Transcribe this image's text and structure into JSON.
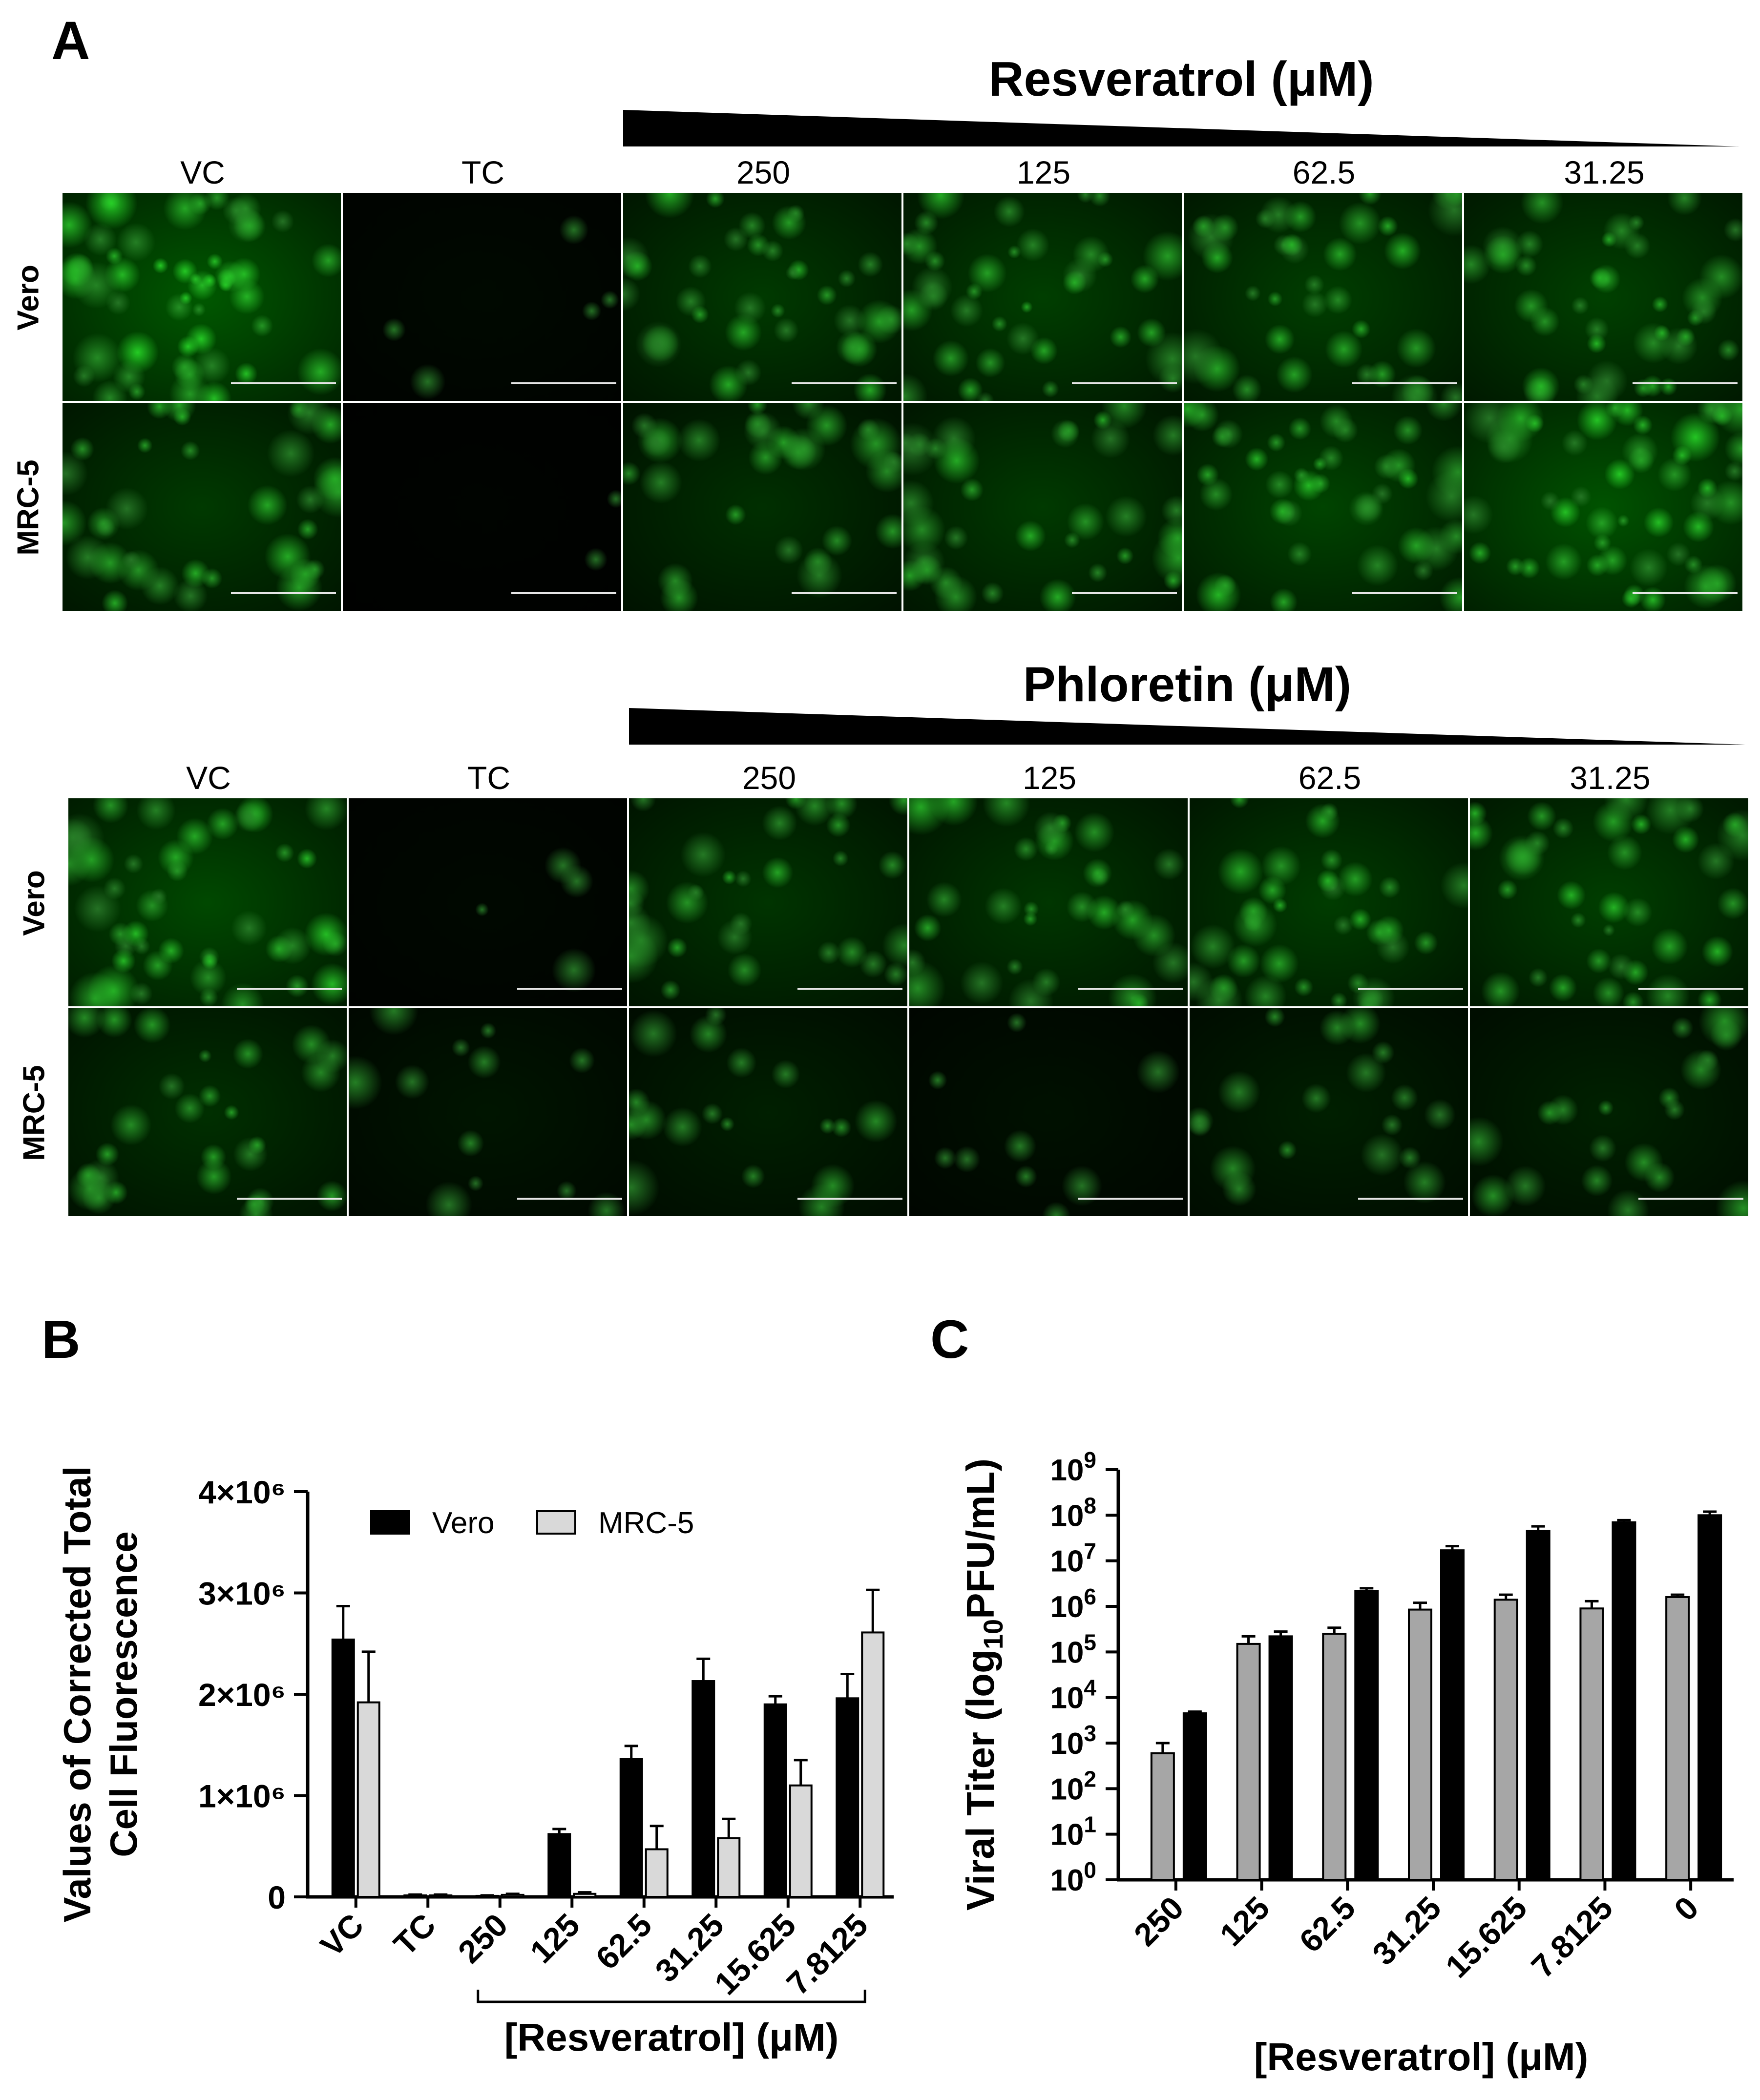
{
  "panel_a": {
    "letter": "A",
    "groups": [
      {
        "drug_title": "Resveratrol (μM)",
        "columns": [
          "VC",
          "TC",
          "250",
          "125",
          "62.5",
          "31.25"
        ],
        "rows": [
          "Vero",
          "MRC-5"
        ],
        "brightness": [
          [
            0.85,
            0.08,
            0.55,
            0.6,
            0.6,
            0.62
          ],
          [
            0.55,
            0.03,
            0.45,
            0.55,
            0.65,
            0.8
          ]
        ]
      },
      {
        "drug_title": "Phloretin (μM)",
        "columns": [
          "VC",
          "TC",
          "250",
          "125",
          "62.5",
          "31.25"
        ],
        "rows": [
          "Vero",
          "MRC-5"
        ],
        "brightness": [
          [
            0.7,
            0.07,
            0.5,
            0.52,
            0.58,
            0.6
          ],
          [
            0.45,
            0.2,
            0.3,
            0.15,
            0.3,
            0.32
          ]
        ]
      }
    ]
  },
  "chart_data": [
    {
      "panel": "B",
      "type": "bar",
      "ylabel_line1": "Values of Corrected Total",
      "ylabel_line2": "Cell Fluorescence",
      "xlabel": "[Resveratrol] (μM)",
      "categories": [
        "VC",
        "TC",
        "250",
        "125",
        "62.5",
        "31.25",
        "15.625",
        "7.8125"
      ],
      "yticks": [
        {
          "value": 0,
          "label": "0"
        },
        {
          "value": 1000000,
          "label": "1×10⁶"
        },
        {
          "value": 2000000,
          "label": "2×10⁶"
        },
        {
          "value": 3000000,
          "label": "3×10⁶"
        },
        {
          "value": 4000000,
          "label": "4×10⁶"
        }
      ],
      "ylim": [
        0,
        4000000
      ],
      "legend_position": "top",
      "series": [
        {
          "name": "Vero",
          "color": "#000000",
          "values": [
            2540000,
            15000,
            10000,
            620000,
            1360000,
            2130000,
            1900000,
            1960000
          ],
          "errors": [
            330000,
            8000,
            5000,
            50000,
            130000,
            220000,
            80000,
            240000
          ]
        },
        {
          "name": "MRC-5",
          "color": "#d9d9d9",
          "values": [
            1920000,
            15000,
            20000,
            30000,
            470000,
            580000,
            1100000,
            2610000
          ],
          "errors": [
            500000,
            8000,
            10000,
            15000,
            230000,
            190000,
            250000,
            420000
          ]
        }
      ]
    },
    {
      "panel": "C",
      "type": "bar",
      "scale": "log",
      "ylabel_main": "Viral Titer (log",
      "ylabel_sub": "10",
      "ylabel_end": "PFU/mL)",
      "xlabel": "[Resveratrol] (μM)",
      "categories": [
        "250",
        "125",
        "62.5",
        "31.25",
        "15.625",
        "7.8125",
        "0"
      ],
      "yticks": [
        {
          "value": 1,
          "base": "10",
          "exp": "0"
        },
        {
          "value": 10,
          "base": "10",
          "exp": "1"
        },
        {
          "value": 100,
          "base": "10",
          "exp": "2"
        },
        {
          "value": 1000,
          "base": "10",
          "exp": "3"
        },
        {
          "value": 10000,
          "base": "10",
          "exp": "4"
        },
        {
          "value": 100000,
          "base": "10",
          "exp": "5"
        },
        {
          "value": 1000000,
          "base": "10",
          "exp": "6"
        },
        {
          "value": 10000000,
          "base": "10",
          "exp": "7"
        },
        {
          "value": 100000000,
          "base": "10",
          "exp": "8"
        },
        {
          "value": 1000000000,
          "base": "10",
          "exp": "9"
        }
      ],
      "ylim": [
        1,
        1000000000
      ],
      "series": [
        {
          "color": "#a6a6a6",
          "values": [
            600,
            150000,
            250000,
            850000,
            1400000,
            900000,
            1600000
          ],
          "errors": [
            400,
            70000,
            90000,
            350000,
            400000,
            400000,
            200000
          ]
        },
        {
          "color": "#000000",
          "values": [
            4500,
            220000,
            2200000,
            17000000,
            45000000,
            70000000,
            100000000
          ],
          "errors": [
            400,
            60000,
            300000,
            4000000,
            12000000,
            8000000,
            20000000
          ]
        }
      ]
    }
  ]
}
